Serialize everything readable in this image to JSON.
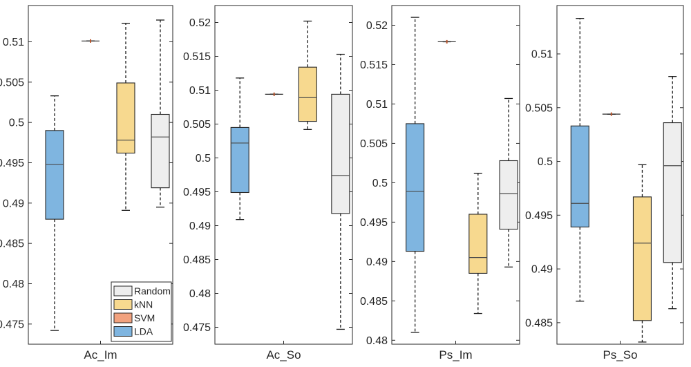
{
  "chart_data": {
    "type": "box",
    "legend": {
      "placement": "bottom-right of first panel",
      "entries": [
        {
          "name": "Random",
          "color": "#EEEEEE"
        },
        {
          "name": "kNN",
          "color": "#F7D98F"
        },
        {
          "name": "SVM",
          "color": "#F2A27E"
        },
        {
          "name": "LDA",
          "color": "#7FB5E0"
        }
      ]
    },
    "series_order": [
      "LDA",
      "SVM",
      "kNN",
      "Random"
    ],
    "panels": [
      {
        "xlabel": "Ac_Im",
        "ylim": [
          0.4725,
          0.5145
        ],
        "yticks": [
          "0.475",
          "0.48",
          "0.485",
          "0.49",
          "0.495",
          "0.5",
          "0.505",
          "0.51"
        ],
        "boxes": [
          {
            "series": "LDA",
            "min": 0.4742,
            "q1": 0.488,
            "median": 0.4948,
            "q3": 0.499,
            "max": 0.5033
          },
          {
            "series": "SVM",
            "min": 0.5101,
            "q1": 0.5101,
            "median": 0.5101,
            "q3": 0.5101,
            "max": 0.5101
          },
          {
            "series": "kNN",
            "min": 0.4891,
            "q1": 0.4962,
            "median": 0.4978,
            "q3": 0.5049,
            "max": 0.5123
          },
          {
            "series": "Random",
            "min": 0.4895,
            "q1": 0.4919,
            "median": 0.4982,
            "q3": 0.501,
            "max": 0.5127
          }
        ]
      },
      {
        "xlabel": "Ac_So",
        "ylim": [
          0.4725,
          0.5225
        ],
        "yticks": [
          "0.475",
          "0.48",
          "0.485",
          "0.49",
          "0.495",
          "0.5",
          "0.505",
          "0.51",
          "0.515",
          "0.52"
        ],
        "boxes": [
          {
            "series": "LDA",
            "min": 0.4909,
            "q1": 0.4949,
            "median": 0.5022,
            "q3": 0.5045,
            "max": 0.5118
          },
          {
            "series": "SVM",
            "min": 0.5094,
            "q1": 0.5094,
            "median": 0.5094,
            "q3": 0.5094,
            "max": 0.5094
          },
          {
            "series": "kNN",
            "min": 0.5042,
            "q1": 0.5054,
            "median": 0.5089,
            "q3": 0.5134,
            "max": 0.5202
          },
          {
            "series": "Random",
            "min": 0.4747,
            "q1": 0.4918,
            "median": 0.4974,
            "q3": 0.5094,
            "max": 0.5153
          }
        ]
      },
      {
        "xlabel": "Ps_Im",
        "ylim": [
          0.4795,
          0.5225
        ],
        "yticks": [
          "0.48",
          "0.485",
          "0.49",
          "0.495",
          "0.5",
          "0.505",
          "0.51",
          "0.515",
          "0.52"
        ],
        "boxes": [
          {
            "series": "LDA",
            "min": 0.481,
            "q1": 0.4913,
            "median": 0.4989,
            "q3": 0.5075,
            "max": 0.521
          },
          {
            "series": "SVM",
            "min": 0.5179,
            "q1": 0.5179,
            "median": 0.5179,
            "q3": 0.5179,
            "max": 0.5179
          },
          {
            "series": "kNN",
            "min": 0.4834,
            "q1": 0.4885,
            "median": 0.4905,
            "q3": 0.496,
            "max": 0.5012
          },
          {
            "series": "Random",
            "min": 0.4893,
            "q1": 0.4941,
            "median": 0.4986,
            "q3": 0.5028,
            "max": 0.5107
          }
        ]
      },
      {
        "xlabel": "Ps_So",
        "ylim": [
          0.483,
          0.5145
        ],
        "yticks": [
          "0.485",
          "0.49",
          "0.495",
          "0.5",
          "0.505",
          "0.51"
        ],
        "boxes": [
          {
            "series": "LDA",
            "min": 0.487,
            "q1": 0.4939,
            "median": 0.4961,
            "q3": 0.5033,
            "max": 0.5133
          },
          {
            "series": "SVM",
            "min": 0.5044,
            "q1": 0.5044,
            "median": 0.5044,
            "q3": 0.5044,
            "max": 0.5044
          },
          {
            "series": "kNN",
            "min": 0.4832,
            "q1": 0.4852,
            "median": 0.4924,
            "q3": 0.4967,
            "max": 0.4997
          },
          {
            "series": "Random",
            "min": 0.4863,
            "q1": 0.4906,
            "median": 0.4996,
            "q3": 0.5036,
            "max": 0.5079
          }
        ]
      }
    ]
  }
}
